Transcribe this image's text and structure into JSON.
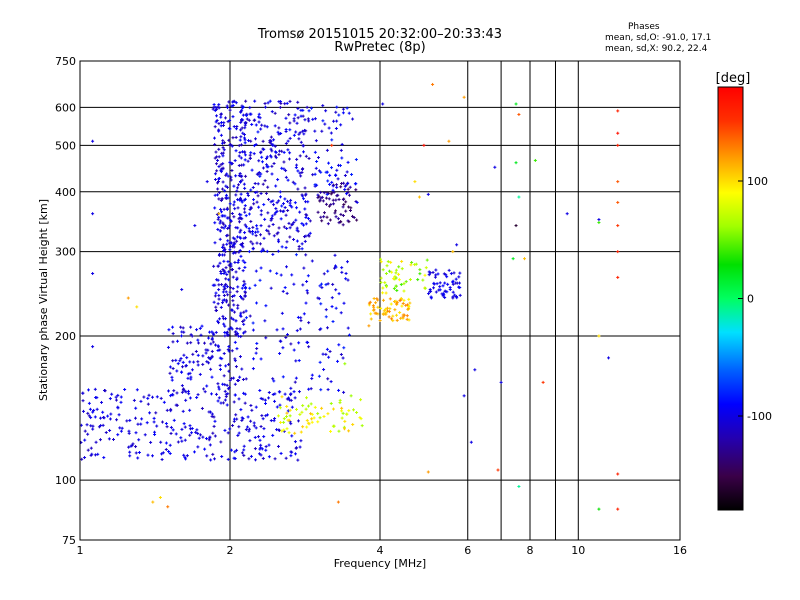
{
  "header": {
    "title_line1": "Tromsø 20151015 20:32:00–20:33:43",
    "title_line2": "RwPretec (8p)",
    "phases_heading": "Phases",
    "phases_o": "mean, sd,O: -91.0, 17.1",
    "phases_x": "mean, sd,X:  90.2, 22.4"
  },
  "colorbar": {
    "unit_label": "[deg]",
    "tick_labels": [
      "100",
      "0",
      "-100"
    ],
    "range": [
      -180,
      180
    ],
    "ticks": [
      100,
      0,
      -100
    ]
  },
  "chart_data": {
    "type": "scatter",
    "title": "Tromsø 20151015 20:32:00–20:33:43",
    "subtitle": "RwPretec (8p)",
    "xlabel": "Frequency [MHz]",
    "ylabel": "Stationary phase Virtual Height [km]",
    "x_scale": "log",
    "y_scale": "log",
    "xlim": [
      1,
      16
    ],
    "ylim": [
      75,
      750
    ],
    "x_ticks": [
      1,
      2,
      4,
      6,
      8,
      10,
      16
    ],
    "x_minor_ticks": [
      7,
      9
    ],
    "x_tick_labels": [
      "1",
      "2",
      "4",
      "6",
      "8",
      "10",
      "16"
    ],
    "y_ticks": [
      75,
      100,
      200,
      300,
      400,
      500,
      600,
      750
    ],
    "y_tick_labels": [
      "75",
      "100",
      "200",
      "300",
      "400",
      "500",
      "600",
      "750"
    ],
    "grid": true,
    "color_scale": "phase in degrees, -180 (black) to +180 (red)",
    "clusters": [
      {
        "name": "O-trace low",
        "f": [
          1.0,
          2.8
        ],
        "h": [
          110,
          155
        ],
        "phase": [
          -115,
          -90
        ],
        "n": 320
      },
      {
        "name": "O-trace rising",
        "f": [
          1.5,
          2.1
        ],
        "h": [
          150,
          210
        ],
        "phase": [
          -115,
          -90
        ],
        "n": 140
      },
      {
        "name": "O-trace vertical 2MHz",
        "f": [
          1.85,
          2.15
        ],
        "h": [
          200,
          620
        ],
        "phase": [
          -120,
          -90
        ],
        "n": 380
      },
      {
        "name": "O-trace F-region",
        "f": [
          2.1,
          2.9
        ],
        "h": [
          300,
          620
        ],
        "phase": [
          -120,
          -85
        ],
        "n": 330
      },
      {
        "name": "mid cluster",
        "f": [
          2.1,
          3.5
        ],
        "h": [
          150,
          300
        ],
        "phase": [
          -115,
          -80
        ],
        "n": 140
      },
      {
        "name": "purple cluster",
        "f": [
          3.0,
          3.6
        ],
        "h": [
          340,
          420
        ],
        "phase": [
          -150,
          -120
        ],
        "n": 70
      },
      {
        "name": "column 3.5MHz",
        "f": [
          2.9,
          3.6
        ],
        "h": [
          390,
          620
        ],
        "phase": [
          -110,
          -80
        ],
        "n": 70
      },
      {
        "name": "X-trace low",
        "f": [
          2.5,
          3.7
        ],
        "h": [
          125,
          150
        ],
        "phase": [
          60,
          110
        ],
        "n": 70
      },
      {
        "name": "X-trace mid",
        "f": [
          3.8,
          4.6
        ],
        "h": [
          215,
          240
        ],
        "phase": [
          90,
          130
        ],
        "n": 70
      },
      {
        "name": "cluster 5.5MHz",
        "f": [
          5.0,
          5.8
        ],
        "h": [
          240,
          275
        ],
        "phase": [
          -110,
          -90
        ],
        "n": 60
      },
      {
        "name": "cluster 4.5MHz",
        "f": [
          4.0,
          5.0
        ],
        "h": [
          245,
          290
        ],
        "phase": [
          40,
          100
        ],
        "n": 50
      }
    ],
    "isolated_points": [
      [
        1.06,
        510,
        -100
      ],
      [
        1.06,
        360,
        -100
      ],
      [
        1.06,
        270,
        -100
      ],
      [
        1.06,
        190,
        -100
      ],
      [
        1.1,
        130,
        -100
      ],
      [
        1.25,
        240,
        120
      ],
      [
        1.3,
        230,
        100
      ],
      [
        1.4,
        90,
        110
      ],
      [
        1.5,
        88,
        130
      ],
      [
        1.45,
        92,
        100
      ],
      [
        1.8,
        420,
        -100
      ],
      [
        1.9,
        360,
        110
      ],
      [
        1.7,
        340,
        -100
      ],
      [
        1.6,
        250,
        -100
      ],
      [
        3.2,
        500,
        150
      ],
      [
        3.6,
        380,
        -100
      ],
      [
        3.3,
        90,
        130
      ],
      [
        3.5,
        150,
        60
      ],
      [
        3.4,
        175,
        60
      ],
      [
        3.8,
        210,
        120
      ],
      [
        4.05,
        610,
        -100
      ],
      [
        4.9,
        500,
        170
      ],
      [
        5.1,
        670,
        130
      ],
      [
        4.7,
        420,
        100
      ],
      [
        4.8,
        390,
        110
      ],
      [
        5.0,
        395,
        -100
      ],
      [
        5.5,
        510,
        120
      ],
      [
        5.9,
        630,
        120
      ],
      [
        5.7,
        310,
        -100
      ],
      [
        5.6,
        300,
        110
      ],
      [
        5.9,
        150,
        -100
      ],
      [
        6.2,
        170,
        -100
      ],
      [
        6.1,
        120,
        -100
      ],
      [
        5.0,
        104,
        120
      ],
      [
        6.8,
        450,
        -100
      ],
      [
        6.9,
        105,
        150
      ],
      [
        7.0,
        160,
        -100
      ],
      [
        7.5,
        610,
        20
      ],
      [
        7.6,
        580,
        140
      ],
      [
        7.5,
        460,
        20
      ],
      [
        7.6,
        390,
        -10
      ],
      [
        7.5,
        340,
        -160
      ],
      [
        7.4,
        290,
        20
      ],
      [
        7.8,
        290,
        110
      ],
      [
        7.6,
        97,
        -10
      ],
      [
        8.2,
        465,
        40
      ],
      [
        8.5,
        160,
        150
      ],
      [
        9.5,
        360,
        -100
      ],
      [
        11.0,
        350,
        -100
      ],
      [
        11.0,
        345,
        40
      ],
      [
        11.0,
        87,
        30
      ],
      [
        11.5,
        180,
        -100
      ],
      [
        12.0,
        590,
        160
      ],
      [
        12.0,
        530,
        170
      ],
      [
        12.0,
        500,
        160
      ],
      [
        12.0,
        420,
        140
      ],
      [
        12.0,
        380,
        140
      ],
      [
        12.0,
        340,
        150
      ],
      [
        12.0,
        300,
        160
      ],
      [
        12.0,
        265,
        160
      ],
      [
        12.0,
        103,
        160
      ],
      [
        12.0,
        87,
        160
      ],
      [
        11.0,
        200,
        100
      ]
    ]
  }
}
